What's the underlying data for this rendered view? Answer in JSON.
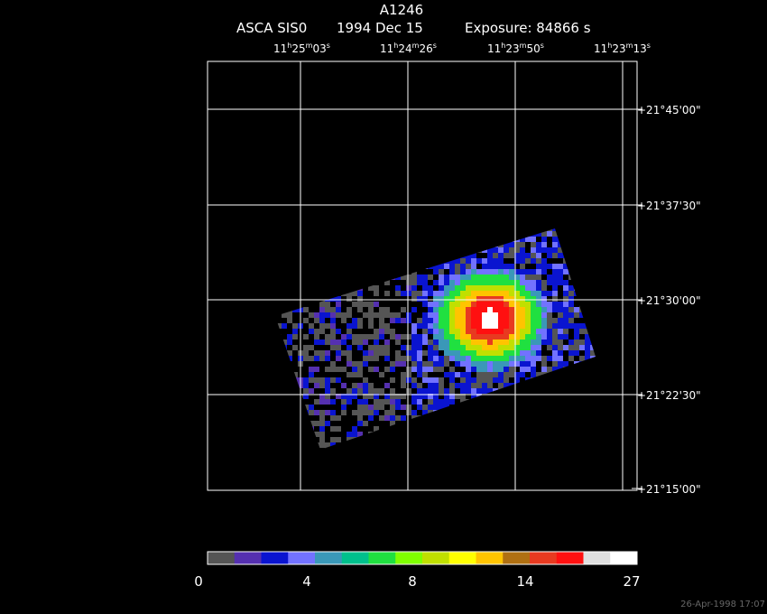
{
  "header": {
    "title": "A1246",
    "instrument": "ASCA SIS0",
    "date": "1994 Dec 15",
    "exposure": "Exposure: 84866 s"
  },
  "ra_units": {
    "hour": "h",
    "minute": "m",
    "second": "s"
  },
  "ra_labels": [
    {
      "hours": "11",
      "minutes": "25",
      "seconds": "03"
    },
    {
      "hours": "11",
      "minutes": "24",
      "seconds": "26"
    },
    {
      "hours": "11",
      "minutes": "23",
      "seconds": "50"
    },
    {
      "hours": "11",
      "minutes": "23",
      "seconds": "13"
    }
  ],
  "dec_labels": [
    "+21°45'00\"",
    "+21°37'30\"",
    "+21°30'00\"",
    "+21°22'30\"",
    "+21°15'00\""
  ],
  "colorbar": {
    "colors": [
      "#555555",
      "#5530b0",
      "#0a14d0",
      "#7272ff",
      "#3a98b8",
      "#00c08c",
      "#20e040",
      "#80ff00",
      "#c0e000",
      "#ffff00",
      "#ffc400",
      "#b07012",
      "#e83a20",
      "#ff1010",
      "#e0e0e0",
      "#ffffff"
    ],
    "labels": [
      "0",
      "4",
      "8",
      "14",
      "27"
    ]
  },
  "footer": "26-Apr-1998 17:07"
}
